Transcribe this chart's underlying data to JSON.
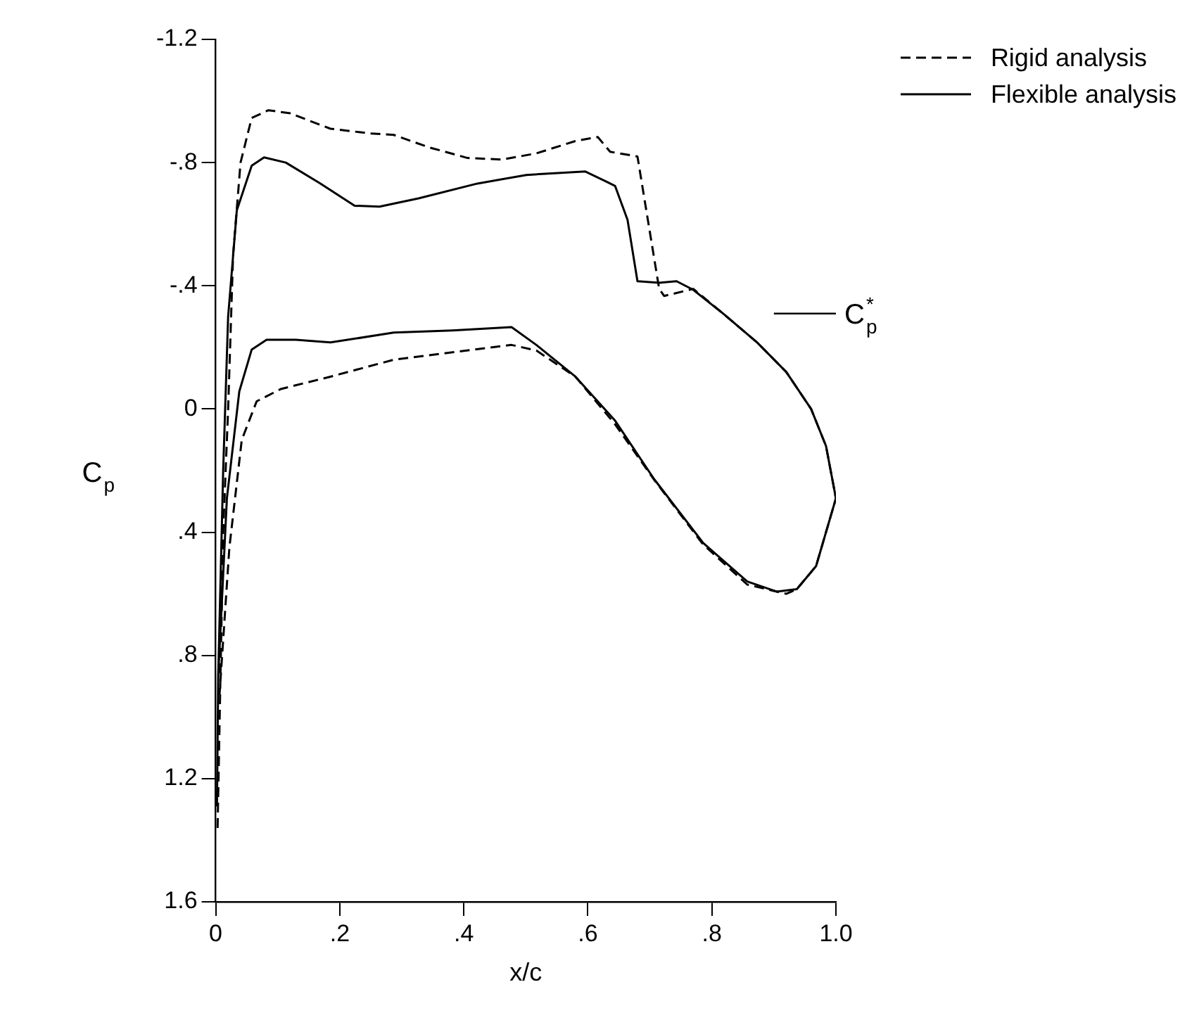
{
  "chart_data": {
    "type": "line",
    "xlabel": "x/c",
    "ylabel": "C$_{p}$",
    "xlim": [
      0,
      1
    ],
    "xticks": [
      0,
      {
        "value": 0.2,
        "label": ".2"
      },
      {
        "value": 0.4,
        "label": ".4"
      },
      {
        "value": 0.6,
        "label": ".6"
      },
      {
        "value": 0.8,
        "label": ".8"
      },
      {
        "value": 1,
        "label": "1.0"
      }
    ],
    "ylim": [
      1.6,
      -1.2
    ],
    "yticks": [
      {
        "value": -1.2,
        "label": "-1.2"
      },
      {
        "value": -0.8,
        "label": "-.8"
      },
      {
        "value": -0.4,
        "label": "-.4"
      },
      0,
      {
        "value": 0.4,
        "label": ".4"
      },
      {
        "value": 0.8,
        "label": ".8"
      },
      {
        "value": 1.2,
        "label": "1.2"
      },
      {
        "value": 1.6,
        "label": "1.6"
      }
    ],
    "grid": false,
    "legend": "top right",
    "marker": "none",
    "ref_lines": [
      {
        "axis": "y",
        "value": -0.31,
        "label": "C$^{*}$$_{p}$"
      }
    ],
    "series": [
      {
        "name": "Rigid analysis",
        "color": "#000000",
        "line_style": "dashed",
        "x": [
          0.003,
          0.012,
          0.02,
          0.028,
          0.04,
          0.058,
          0.085,
          0.12,
          0.185,
          0.248,
          0.287,
          0.343,
          0.406,
          0.462,
          0.517,
          0.58,
          0.616,
          0.636,
          0.68,
          0.715,
          0.723,
          0.77,
          0.818,
          0.873,
          0.92,
          0.96,
          0.984,
          1.0,
          0.968,
          0.937,
          0.92,
          0.857,
          0.786,
          0.707,
          0.644,
          0.58,
          0.517,
          0.477,
          0.382,
          0.287,
          0.185,
          0.105,
          0.066,
          0.042,
          0.022,
          0.006
        ],
        "values": [
          1.36,
          0.4,
          0.0,
          -0.5,
          -0.8,
          -0.945,
          -0.97,
          -0.96,
          -0.91,
          -0.895,
          -0.89,
          -0.85,
          -0.815,
          -0.81,
          -0.83,
          -0.87,
          -0.883,
          -0.835,
          -0.82,
          -0.39,
          -0.367,
          -0.39,
          -0.31,
          -0.216,
          -0.12,
          0.0,
          0.12,
          0.29,
          0.51,
          0.585,
          0.6,
          0.57,
          0.44,
          0.23,
          0.05,
          -0.105,
          -0.19,
          -0.208,
          -0.184,
          -0.16,
          -0.105,
          -0.065,
          -0.025,
          0.1,
          0.45,
          0.93
        ]
      },
      {
        "name": "Flexible analysis",
        "color": "#000000",
        "line_style": "solid",
        "x": [
          0.002,
          0.004,
          0.012,
          0.02,
          0.034,
          0.058,
          0.078,
          0.113,
          0.168,
          0.224,
          0.264,
          0.327,
          0.422,
          0.501,
          0.596,
          0.628,
          0.644,
          0.664,
          0.68,
          0.715,
          0.743,
          0.77,
          0.818,
          0.873,
          0.92,
          0.96,
          0.984,
          1.0,
          0.968,
          0.937,
          0.905,
          0.857,
          0.786,
          0.707,
          0.644,
          0.58,
          0.517,
          0.477,
          0.382,
          0.287,
          0.185,
          0.129,
          0.082,
          0.058,
          0.038,
          0.018,
          0.004
        ],
        "values": [
          1.29,
          0.87,
          0.2,
          -0.3,
          -0.645,
          -0.79,
          -0.817,
          -0.8,
          -0.733,
          -0.66,
          -0.657,
          -0.684,
          -0.732,
          -0.76,
          -0.771,
          -0.74,
          -0.724,
          -0.614,
          -0.415,
          -0.41,
          -0.415,
          -0.387,
          -0.31,
          -0.216,
          -0.12,
          0.0,
          0.12,
          0.29,
          0.51,
          0.585,
          0.593,
          0.56,
          0.435,
          0.228,
          0.038,
          -0.105,
          -0.208,
          -0.266,
          -0.255,
          -0.248,
          -0.216,
          -0.225,
          -0.225,
          -0.193,
          -0.057,
          0.29,
          0.87
        ]
      }
    ]
  }
}
